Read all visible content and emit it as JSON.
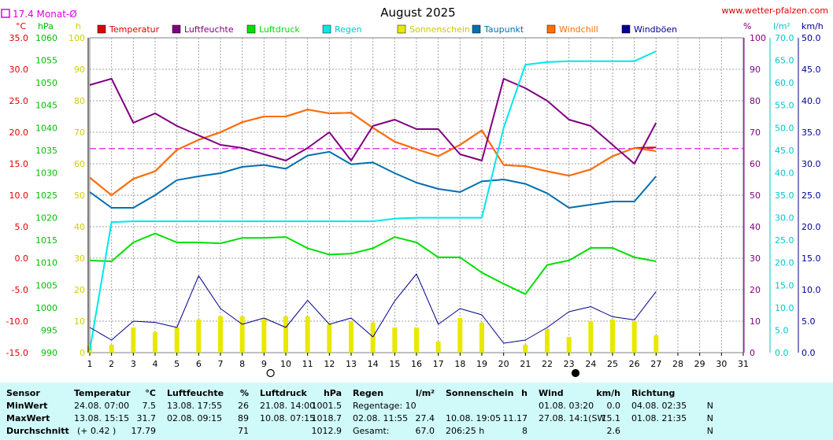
{
  "header": {
    "monat_label": "17.4 Monat-Ø",
    "title": "August 2025",
    "site": "www.wetter-pfalzen.com"
  },
  "units": {
    "temp": "°C",
    "pressure": "hPa",
    "sun": "h",
    "humidity": "%",
    "rain": "l/m²",
    "wind": "km/h"
  },
  "legend": [
    {
      "name": "Temperatur",
      "color": "#e00000"
    },
    {
      "name": "Luftfeuchte",
      "color": "#800080"
    },
    {
      "name": "Luftdruck",
      "color": "#00e000"
    },
    {
      "name": "Regen",
      "color": "#00e8e8"
    },
    {
      "name": "Sonnenschein",
      "color": "#e8e800"
    },
    {
      "name": "Taupunkt",
      "color": "#0070b0"
    },
    {
      "name": "Windchill",
      "color": "#ff7000"
    },
    {
      "name": "Windböen",
      "color": "#000090"
    }
  ],
  "axes_labels": {
    "temp": [
      "35.0",
      "30.0",
      "25.0",
      "20.0",
      "15.0",
      "10.0",
      "5.0",
      "0.0",
      "-5.0",
      "-10.0",
      "-15.0"
    ],
    "pressure": [
      "1060",
      "1055",
      "1050",
      "1045",
      "1040",
      "1035",
      "1030",
      "1025",
      "1020",
      "1015",
      "1010",
      "1005",
      "1000",
      "995",
      "990"
    ],
    "sun": [
      "100",
      "90",
      "80",
      "70",
      "60",
      "50",
      "40",
      "30",
      "20",
      "10",
      "0"
    ],
    "humidity": [
      "100",
      "90",
      "80",
      "70",
      "60",
      "50",
      "40",
      "30",
      "20",
      "10",
      "0"
    ],
    "rain": [
      "70.0",
      "65.0",
      "60.0",
      "55.0",
      "50.0",
      "45.0",
      "40.0",
      "35.0",
      "30.0",
      "25.0",
      "20.0",
      "15.0",
      "10.0",
      "5.0",
      "0.0"
    ],
    "wind": [
      "50.0",
      "45.0",
      "40.0",
      "35.0",
      "30.0",
      "25.0",
      "20.0",
      "15.0",
      "10.0",
      "5.0",
      "0.0"
    ]
  },
  "chart_data": {
    "type": "line",
    "title": "August 2025",
    "x": [
      1,
      2,
      3,
      4,
      5,
      6,
      7,
      8,
      9,
      10,
      11,
      12,
      13,
      14,
      15,
      16,
      17,
      18,
      19,
      20,
      21,
      22,
      23,
      24,
      25,
      26,
      27
    ],
    "x_ticks": [
      "1",
      "2",
      "3",
      "4",
      "5",
      "6",
      "7",
      "8",
      "9",
      "10",
      "11",
      "12",
      "13",
      "14",
      "15",
      "16",
      "17",
      "18",
      "19",
      "20",
      "21",
      "22",
      "23",
      "24",
      "25",
      "26",
      "27",
      "28",
      "29",
      "30",
      "31"
    ],
    "xlim": [
      1,
      31
    ],
    "monthly_avg_temp": 17.4,
    "moon_full_day": 9.3,
    "moon_new_day": 23.3,
    "series": [
      {
        "name": "Temperatur",
        "axis": "temp",
        "ylim": [
          -15,
          35
        ],
        "values": [
          12.8,
          10.0,
          12.6,
          13.8,
          17.2,
          18.8,
          20.0,
          21.6,
          22.5,
          22.5,
          23.6,
          23.0,
          23.1,
          20.7,
          18.5,
          17.3,
          16.2,
          18.0,
          20.3,
          14.8,
          14.6,
          13.8,
          13.1,
          14.1,
          16.2,
          17.5,
          17.6
        ]
      },
      {
        "name": "Windchill",
        "axis": "temp",
        "ylim": [
          -15,
          35
        ],
        "values": [
          12.8,
          10.0,
          12.6,
          13.8,
          17.2,
          18.8,
          20.0,
          21.6,
          22.5,
          22.5,
          23.6,
          23.0,
          23.1,
          20.7,
          18.5,
          17.3,
          16.2,
          18.0,
          20.3,
          14.8,
          14.6,
          13.8,
          13.1,
          14.1,
          16.2,
          17.5,
          17.0
        ]
      },
      {
        "name": "Taupunkt",
        "axis": "temp",
        "ylim": [
          -15,
          35
        ],
        "values": [
          10.5,
          8.0,
          8.0,
          10.0,
          12.4,
          13.0,
          13.5,
          14.5,
          14.8,
          14.2,
          16.3,
          16.9,
          14.9,
          15.2,
          13.5,
          12.0,
          11.0,
          10.5,
          12.2,
          12.5,
          11.8,
          10.3,
          8.0,
          8.5,
          9.0,
          9.0,
          13.0
        ]
      },
      {
        "name": "Luftfeuchte",
        "axis": "humidity",
        "ylim": [
          0,
          100
        ],
        "values": [
          85,
          87,
          73,
          76,
          72,
          69,
          66,
          65,
          63,
          61,
          65,
          70,
          61,
          72,
          74,
          71,
          71,
          63,
          61,
          87,
          84,
          80,
          74,
          72,
          66,
          60,
          73
        ]
      },
      {
        "name": "Luftdruck",
        "axis": "pressure",
        "ylim": [
          990,
          1060
        ],
        "values": [
          1010.5,
          1010.3,
          1014.5,
          1016.5,
          1014.5,
          1014.5,
          1014.3,
          1015.5,
          1015.5,
          1015.7,
          1013.2,
          1011.8,
          1012.0,
          1013.2,
          1015.7,
          1014.5,
          1011.2,
          1011.2,
          1007.8,
          1005.3,
          1003.0,
          1009.5,
          1010.5,
          1013.3,
          1013.3,
          1011.2,
          1010.3
        ]
      },
      {
        "name": "Regen",
        "axis": "rain",
        "ylim": [
          0,
          70
        ],
        "values": [
          0.5,
          29.0,
          29.2,
          29.2,
          29.2,
          29.2,
          29.2,
          29.2,
          29.2,
          29.2,
          29.2,
          29.2,
          29.2,
          29.2,
          29.8,
          30.0,
          30.0,
          30.0,
          30.0,
          50.0,
          64.0,
          64.6,
          64.8,
          64.8,
          64.8,
          64.8,
          67.0
        ]
      },
      {
        "name": "Windböen",
        "axis": "wind",
        "ylim": [
          0,
          50
        ],
        "values": [
          4.0,
          2.0,
          5.0,
          4.8,
          4.0,
          12.2,
          7.0,
          4.5,
          5.5,
          4.0,
          8.3,
          4.5,
          5.5,
          2.5,
          8.2,
          12.5,
          4.5,
          7.0,
          6.0,
          1.5,
          2.0,
          4.0,
          6.5,
          7.3,
          5.7,
          5.2,
          9.7
        ]
      },
      {
        "name": "Sonnenschein",
        "axis": "sun",
        "ylim": [
          0,
          100
        ],
        "type": "bar",
        "values": [
          2,
          2.5,
          8,
          6.5,
          8,
          10.5,
          11.5,
          11.5,
          11,
          11.5,
          11.5,
          9,
          10,
          9.5,
          8,
          8,
          3.5,
          11,
          9.5,
          0,
          2.5,
          7.5,
          5,
          10,
          10.5,
          10,
          5.5
        ]
      }
    ]
  },
  "stats": {
    "sensor": {
      "header": "Sensor",
      "min_label": "MinWert",
      "max_label": "MaxWert",
      "avg_label": "Durchschnitt"
    },
    "temperatur": {
      "header": "Temperatur",
      "unit": "°C",
      "min_time": "24.08.  07:00",
      "min_val": "7.5",
      "max_time": "13.08.  15:15",
      "max_val": "31.7",
      "avg_note": "(+ 0.42 )",
      "avg_val": "17.79"
    },
    "luftfeuchte": {
      "header": "Luftfeuchte",
      "unit": "%",
      "min_time": "13.08.  17:55",
      "min_val": "26",
      "max_time": "02.08.  09:15",
      "max_val": "89",
      "avg_val": "71"
    },
    "luftdruck": {
      "header": "Luftdruck",
      "unit": "hPa",
      "min_time": "21.08.  14:00",
      "min_val": "1001.5",
      "max_time": "10.08.  07:15",
      "max_val": "1018.7",
      "avg_val": "1012.9"
    },
    "regen": {
      "header": "Regen",
      "unit": "l/m²",
      "min_text": "Regentage: 10",
      "max_time": "02.08.  11:55",
      "max_val": "27.4",
      "avg_label": "Gesamt:",
      "avg_val": "67.0"
    },
    "sonnenschein": {
      "header": "Sonnenschein",
      "unit": "h",
      "max_time": "10.08.  19:05",
      "max_val": "11.17",
      "avg_time": "206:25 h",
      "avg_val": "8"
    },
    "wind": {
      "header": "Wind",
      "unit": "km/h",
      "min_time": "01.08.  03:20",
      "min_val": "0.0",
      "max_time": "27.08.  14:1(SW",
      "max_val": "15.1",
      "avg_val": "2.6"
    },
    "richtung": {
      "header": "Richtung",
      "min_time": "04.08.  02:35",
      "min_val": "N",
      "max_time": "01.08.  21:35",
      "max_val": "N",
      "avg_val": "N"
    }
  }
}
